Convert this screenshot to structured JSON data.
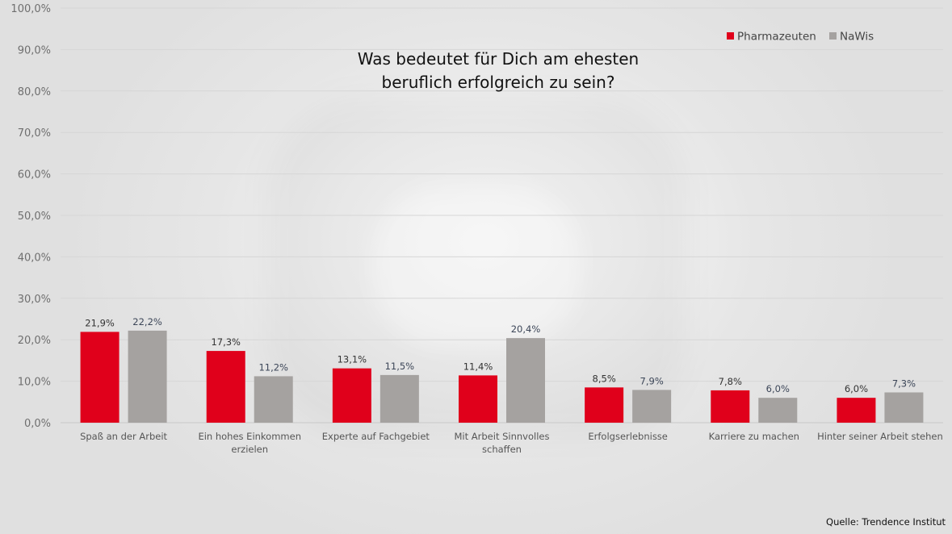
{
  "chart_data": {
    "type": "bar",
    "title": "Was bedeutet für Dich am ehesten beruflich erfolgreich zu sein?",
    "title_lines": [
      "Was bedeutet für Dich am ehesten",
      "beruflich erfolgreich zu sein?"
    ],
    "xlabel": "",
    "ylabel": "",
    "ylim": [
      0,
      100
    ],
    "yticks": [
      0,
      10,
      20,
      30,
      40,
      50,
      60,
      70,
      80,
      90,
      100
    ],
    "ytick_labels": [
      "0,0%",
      "10,0%",
      "20,0%",
      "30,0%",
      "40,0%",
      "50,0%",
      "60,0%",
      "70,0%",
      "80,0%",
      "90,0%",
      "100,0%"
    ],
    "grid": true,
    "legend_position": "top-right",
    "categories": [
      [
        "Spaß an der Arbeit"
      ],
      [
        "Ein hohes Einkommen",
        "erzielen"
      ],
      [
        "Experte auf Fachgebiet"
      ],
      [
        "Mit Arbeit Sinnvolles",
        "schaffen"
      ],
      [
        "Erfolgserlebnisse"
      ],
      [
        "Karriere zu machen"
      ],
      [
        "Hinter seiner Arbeit stehen"
      ]
    ],
    "series": [
      {
        "name": "Pharmazeuten",
        "color": "#e0001b",
        "values": [
          21.9,
          17.3,
          13.1,
          11.4,
          8.5,
          7.8,
          6.0
        ],
        "labels": [
          "21,9%",
          "17,3%",
          "13,1%",
          "11,4%",
          "8,5%",
          "7,8%",
          "6,0%"
        ]
      },
      {
        "name": "NaWis",
        "color": "#a5a2a0",
        "values": [
          22.2,
          11.2,
          11.5,
          20.4,
          7.9,
          6.0,
          7.3
        ],
        "labels": [
          "22,2%",
          "11,2%",
          "11,5%",
          "20,4%",
          "7,9%",
          "6,0%",
          "7,3%"
        ]
      }
    ]
  },
  "footer": {
    "source": "Quelle: Trendence Institut"
  }
}
